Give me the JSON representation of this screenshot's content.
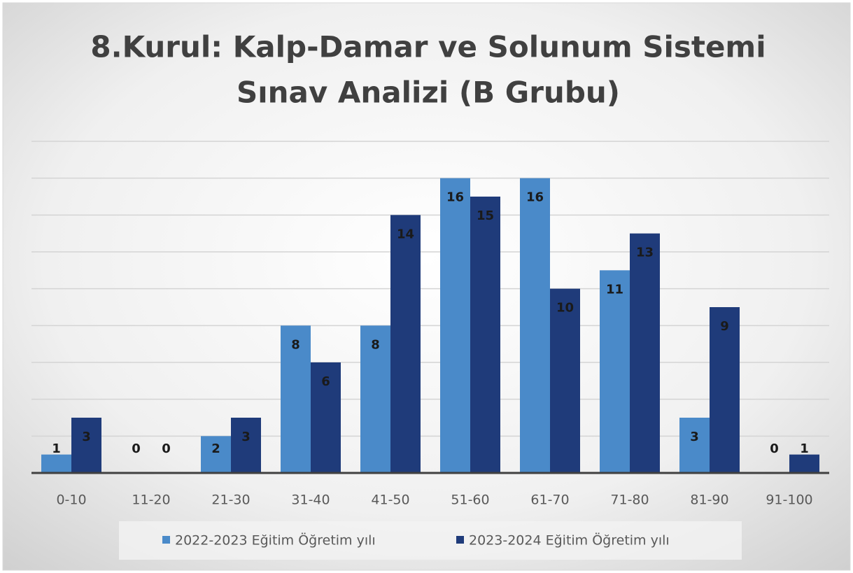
{
  "chart_data": {
    "type": "bar",
    "title": [
      "8.Kurul: Kalp-Damar ve Solunum Sistemi",
      "Sınav Analizi (B Grubu)"
    ],
    "categories": [
      "0-10",
      "11-20",
      "21-30",
      "31-40",
      "41-50",
      "51-60",
      "61-70",
      "71-80",
      "81-90",
      "91-100"
    ],
    "series": [
      {
        "name": "2022-2023 Eğitim Öğretim yılı",
        "color": "#4a8ac9",
        "values": [
          1,
          0,
          2,
          8,
          8,
          16,
          16,
          11,
          3,
          0
        ]
      },
      {
        "name": "2023-2024 Eğitim Öğretim yılı",
        "color": "#1f3b7a",
        "values": [
          3,
          0,
          3,
          6,
          14,
          15,
          10,
          13,
          9,
          1
        ]
      }
    ],
    "ylim": [
      0,
      18
    ],
    "yticks": [
      0,
      2,
      4,
      6,
      8,
      10,
      12,
      14,
      16,
      18
    ],
    "grid": true,
    "legend": "bottom"
  }
}
